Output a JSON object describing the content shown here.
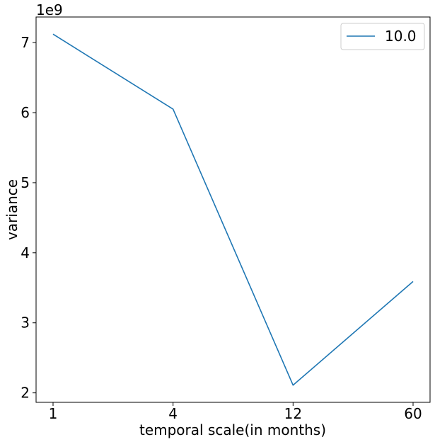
{
  "chart_data": {
    "type": "line",
    "categories": [
      "1",
      "4",
      "12",
      "60"
    ],
    "series": [
      {
        "name": "10.0",
        "values": [
          7120000000,
          6050000000,
          2110000000,
          3590000000
        ],
        "color": "#1f77b4"
      }
    ],
    "xlabel": "temporal scale(in months)",
    "ylabel": "variance",
    "offset_text": "1e9",
    "scale": 1000000000,
    "yticks": [
      2,
      3,
      4,
      5,
      6,
      7
    ],
    "ylim": [
      1.865,
      7.365
    ],
    "grid": false,
    "legend_position": "upper right"
  }
}
